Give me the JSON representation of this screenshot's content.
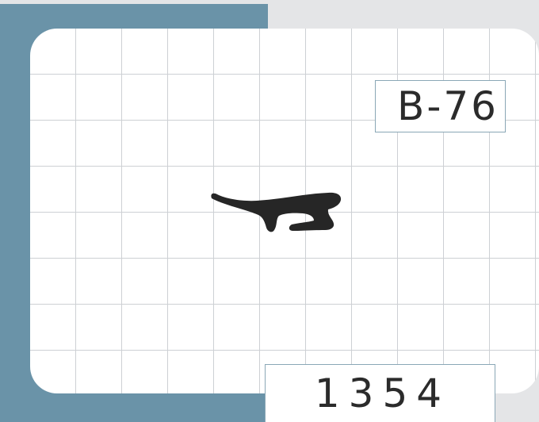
{
  "label": {
    "code": "B-76",
    "number": "1354"
  },
  "profile": {
    "icon": "seal-profile-icon",
    "color": "#262626"
  },
  "colors": {
    "background": "#e4e5e7",
    "band": "#6a93a8",
    "grid_lines": "#cdd0d4",
    "box_border": "#8aa7b6",
    "text": "#2b2b2b"
  }
}
